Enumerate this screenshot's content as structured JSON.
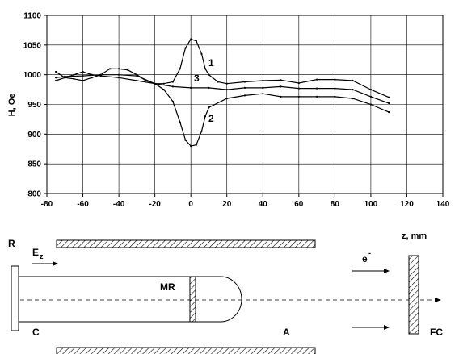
{
  "chart_data": {
    "type": "line",
    "xlabel": "z, mm",
    "ylabel": "H, Oe",
    "xlim": [
      -80,
      140
    ],
    "ylim": [
      800,
      1100
    ],
    "xticks": [
      -80,
      -60,
      -40,
      -20,
      0,
      20,
      40,
      60,
      80,
      100,
      120,
      140
    ],
    "yticks": [
      800,
      850,
      900,
      950,
      1000,
      1050,
      1100
    ],
    "grid": true,
    "series": [
      {
        "name": "1",
        "points": [
          [
            -75,
            990
          ],
          [
            -70,
            995
          ],
          [
            -65,
            993
          ],
          [
            -60,
            990
          ],
          [
            -55,
            995
          ],
          [
            -50,
            1000
          ],
          [
            -45,
            1010
          ],
          [
            -40,
            1010
          ],
          [
            -35,
            1008
          ],
          [
            -30,
            1000
          ],
          [
            -25,
            990
          ],
          [
            -20,
            985
          ],
          [
            -15,
            985
          ],
          [
            -10,
            988
          ],
          [
            -6,
            1010
          ],
          [
            -3,
            1045
          ],
          [
            0,
            1060
          ],
          [
            3,
            1057
          ],
          [
            6,
            1035
          ],
          [
            8,
            1010
          ],
          [
            10,
            1000
          ],
          [
            15,
            988
          ],
          [
            20,
            985
          ],
          [
            30,
            988
          ],
          [
            40,
            990
          ],
          [
            50,
            991
          ],
          [
            60,
            986
          ],
          [
            70,
            992
          ],
          [
            80,
            992
          ],
          [
            90,
            990
          ],
          [
            100,
            975
          ],
          [
            110,
            962
          ]
        ]
      },
      {
        "name": "2",
        "points": [
          [
            -75,
            1005
          ],
          [
            -70,
            995
          ],
          [
            -65,
            1000
          ],
          [
            -60,
            1005
          ],
          [
            -55,
            1000
          ],
          [
            -50,
            998
          ],
          [
            -40,
            995
          ],
          [
            -30,
            990
          ],
          [
            -20,
            985
          ],
          [
            -15,
            975
          ],
          [
            -10,
            955
          ],
          [
            -6,
            920
          ],
          [
            -3,
            890
          ],
          [
            0,
            880
          ],
          [
            3,
            882
          ],
          [
            6,
            905
          ],
          [
            8,
            930
          ],
          [
            10,
            945
          ],
          [
            20,
            960
          ],
          [
            30,
            965
          ],
          [
            40,
            968
          ],
          [
            50,
            963
          ],
          [
            60,
            963
          ],
          [
            70,
            963
          ],
          [
            80,
            963
          ],
          [
            90,
            960
          ],
          [
            100,
            950
          ],
          [
            110,
            937
          ]
        ]
      },
      {
        "name": "3",
        "points": [
          [
            -75,
            995
          ],
          [
            -70,
            997
          ],
          [
            -60,
            998
          ],
          [
            -50,
            1000
          ],
          [
            -40,
            1000
          ],
          [
            -30,
            998
          ],
          [
            -20,
            985
          ],
          [
            -10,
            980
          ],
          [
            0,
            978
          ],
          [
            10,
            978
          ],
          [
            20,
            975
          ],
          [
            30,
            978
          ],
          [
            40,
            978
          ],
          [
            50,
            980
          ],
          [
            60,
            977
          ],
          [
            70,
            977
          ],
          [
            80,
            977
          ],
          [
            90,
            975
          ],
          [
            100,
            963
          ],
          [
            110,
            952
          ]
        ]
      }
    ],
    "annotations": [
      "1",
      "2",
      "3"
    ]
  },
  "diagram": {
    "label_R": "R",
    "label_E": "E",
    "label_E_sub": "z",
    "label_MR": "MR",
    "label_e": "e",
    "label_e_sup": "-",
    "label_C": "C",
    "label_A": "A",
    "label_FC": "FC"
  }
}
